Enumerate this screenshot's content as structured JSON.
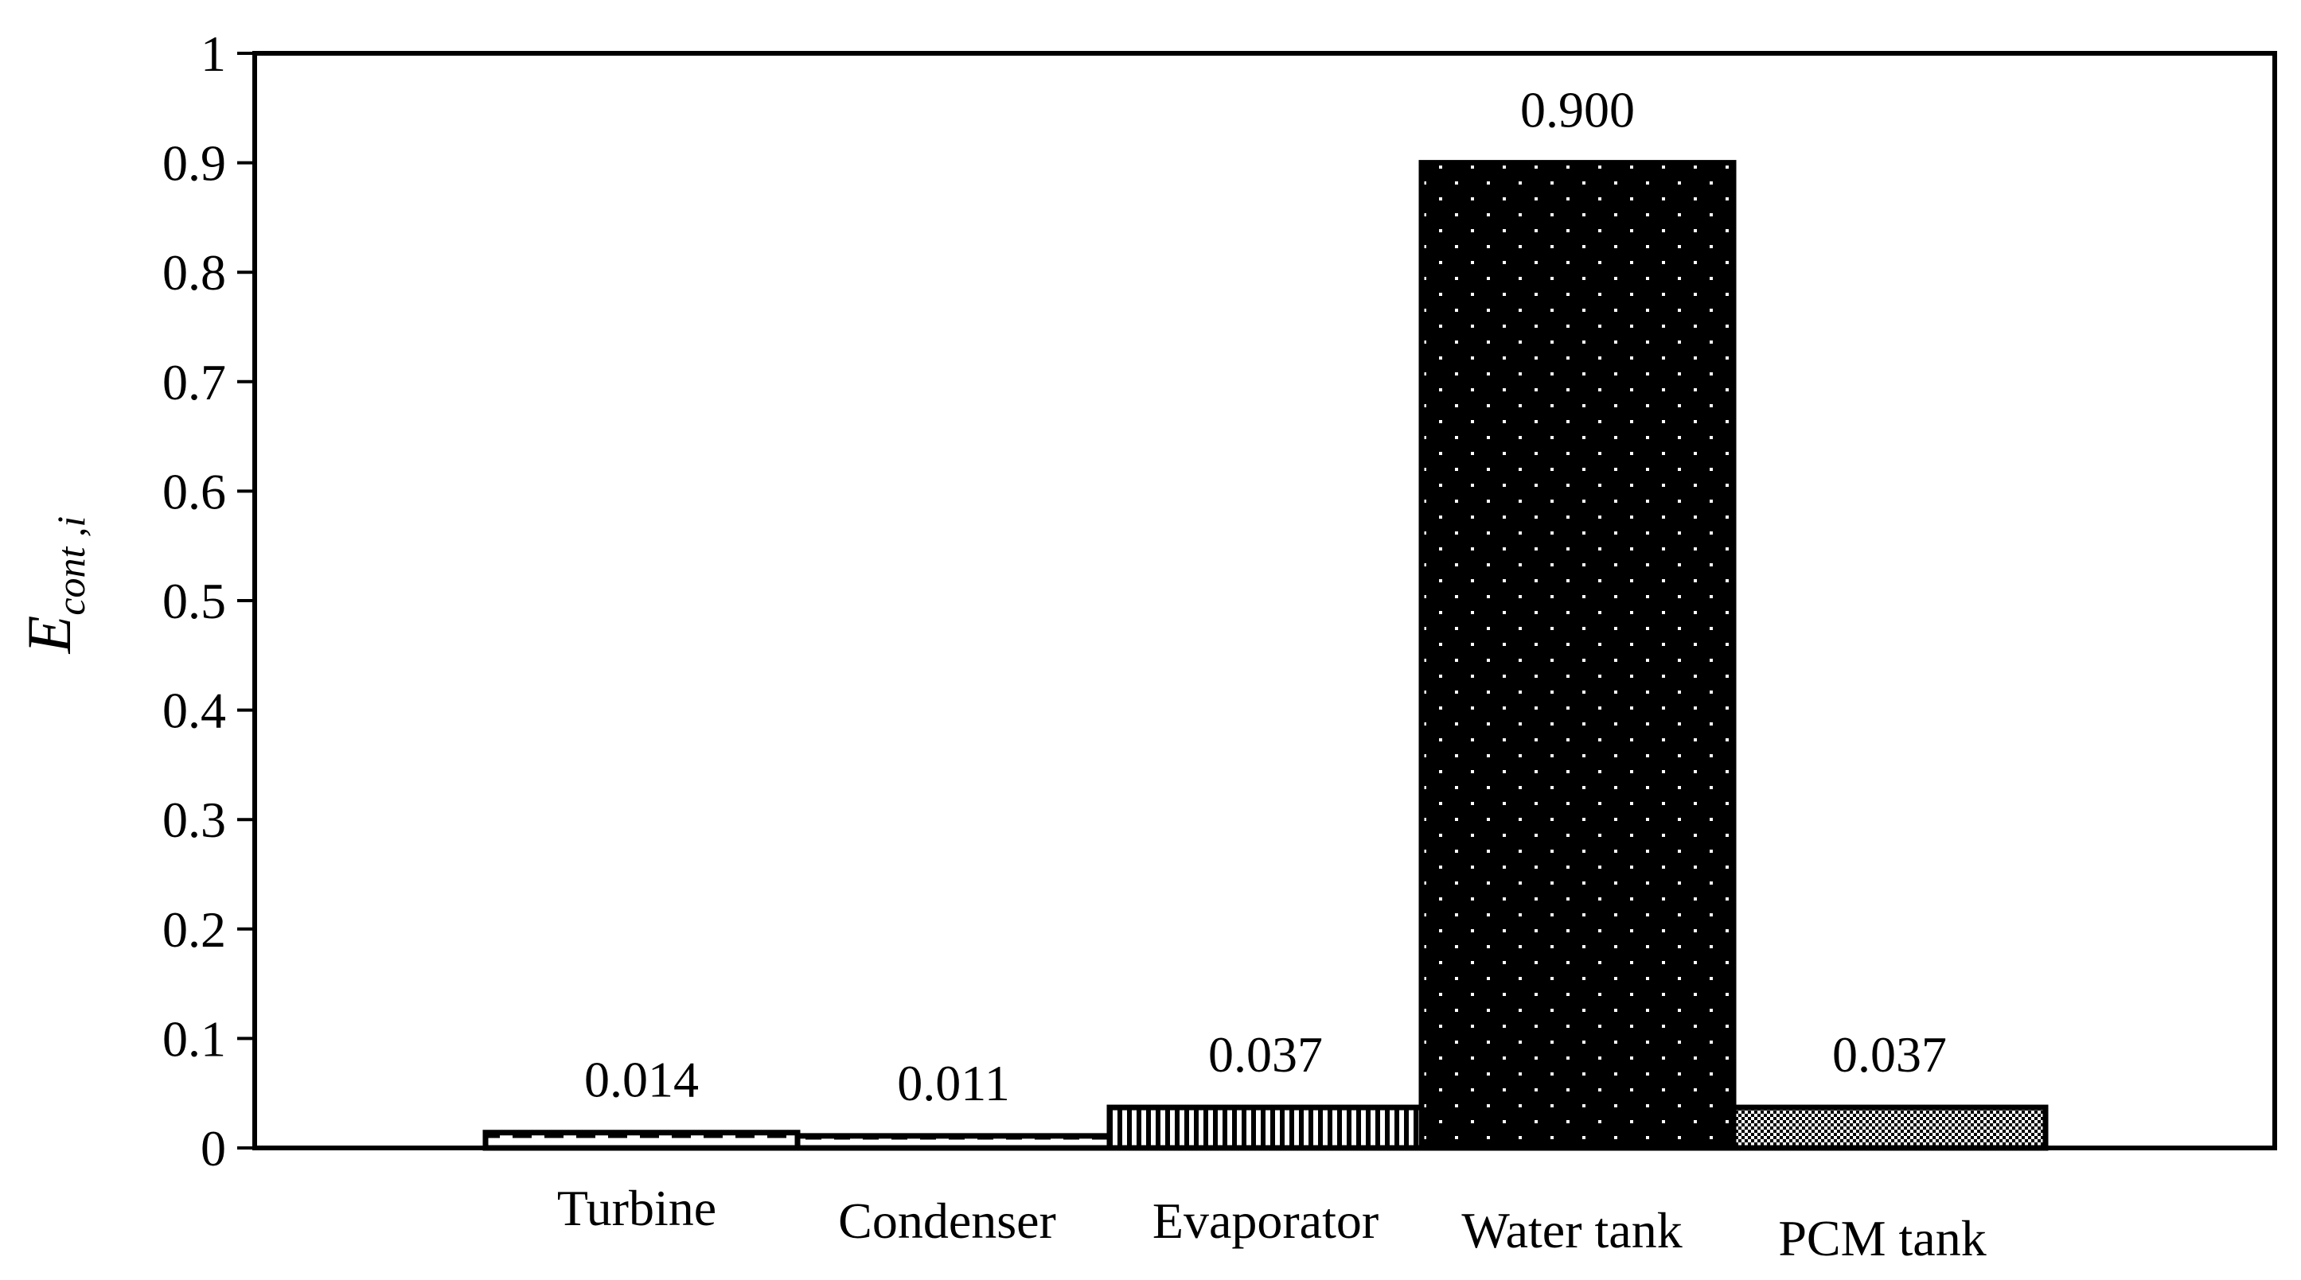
{
  "chart_data": {
    "type": "bar",
    "title": "",
    "xlabel": "",
    "ylabel": {
      "main": "E",
      "sub": "cont ,i"
    },
    "ylim": [
      0,
      1
    ],
    "yticks": [
      0,
      0.1,
      0.2,
      0.3,
      0.4,
      0.5,
      0.6,
      0.7,
      0.8,
      0.9,
      1
    ],
    "ytick_labels": [
      "0",
      "0.1",
      "0.2",
      "0.3",
      "0.4",
      "0.5",
      "0.6",
      "0.7",
      "0.8",
      "0.9",
      "1"
    ],
    "categories": [
      "Turbine",
      "Condenser",
      "Evaporator",
      "Water tank",
      "PCM tank"
    ],
    "values": [
      0.014,
      0.011,
      0.037,
      0.9,
      0.037
    ],
    "data_labels": [
      "0.014",
      "0.011",
      "0.037",
      "0.900",
      "0.037"
    ],
    "patterns": [
      "dashed",
      "dashed-fine",
      "vertical-stripes",
      "dots-on-black",
      "checker"
    ],
    "colors": {
      "ink": "#000000",
      "background": "#ffffff"
    },
    "grid": false,
    "legend": "none"
  }
}
